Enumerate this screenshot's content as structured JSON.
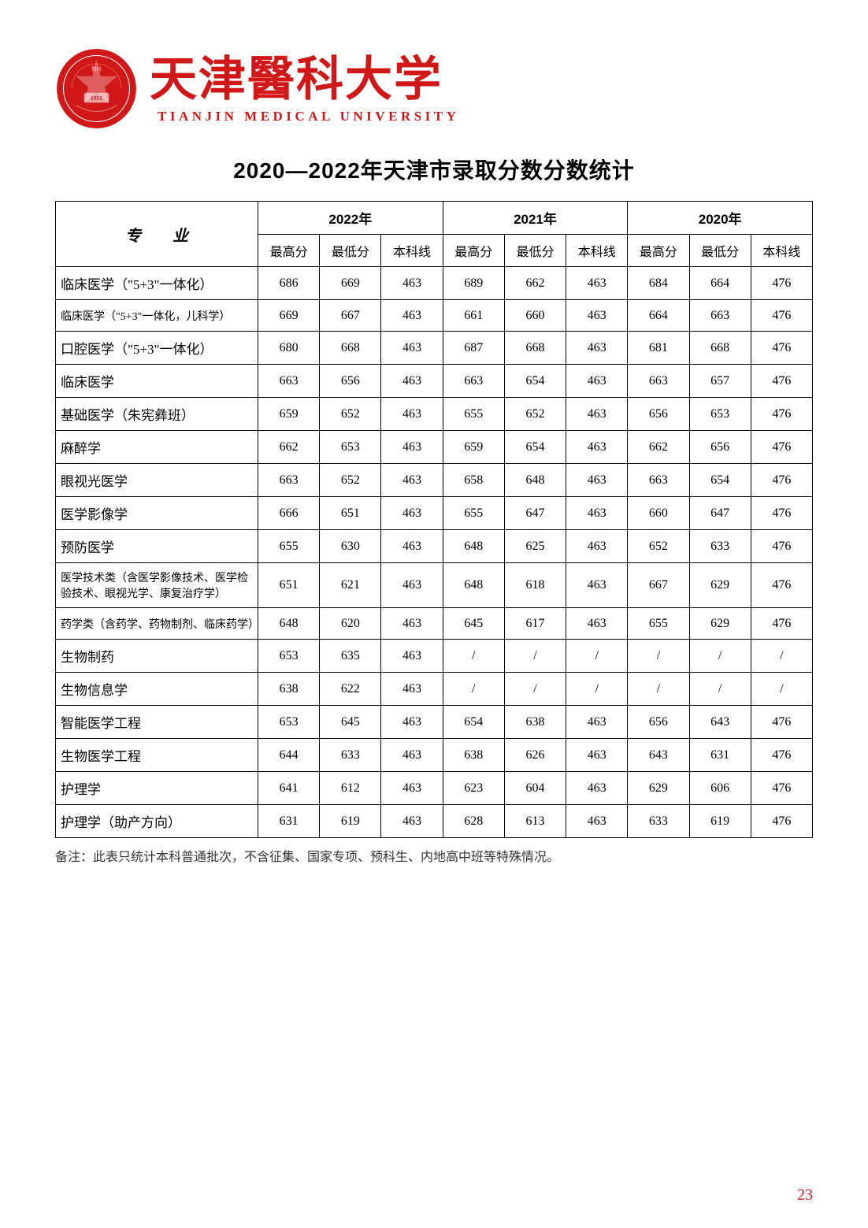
{
  "header": {
    "chinese_name": "天津醫科大学",
    "english_name": "TIANJIN MEDICAL UNIVERSITY",
    "logo_bg": "#d01818",
    "logo_inner": "#ffffff"
  },
  "title": "2020—2022年天津市录取分数分数统计",
  "table": {
    "major_header": "专　　业",
    "years": [
      "2022年",
      "2021年",
      "2020年"
    ],
    "sub_headers": [
      "最高分",
      "最低分",
      "本科线"
    ],
    "rows": [
      {
        "major": "临床医学（\"5+3\"一体化）",
        "data": [
          "686",
          "669",
          "463",
          "689",
          "662",
          "463",
          "684",
          "664",
          "476"
        ]
      },
      {
        "major": "临床医学（\"5+3\"一体化，儿科学）",
        "small": true,
        "data": [
          "669",
          "667",
          "463",
          "661",
          "660",
          "463",
          "664",
          "663",
          "476"
        ]
      },
      {
        "major": "口腔医学（\"5+3\"一体化）",
        "data": [
          "680",
          "668",
          "463",
          "687",
          "668",
          "463",
          "681",
          "668",
          "476"
        ]
      },
      {
        "major": "临床医学",
        "data": [
          "663",
          "656",
          "463",
          "663",
          "654",
          "463",
          "663",
          "657",
          "476"
        ]
      },
      {
        "major": "基础医学（朱宪彝班）",
        "data": [
          "659",
          "652",
          "463",
          "655",
          "652",
          "463",
          "656",
          "653",
          "476"
        ]
      },
      {
        "major": "麻醉学",
        "data": [
          "662",
          "653",
          "463",
          "659",
          "654",
          "463",
          "662",
          "656",
          "476"
        ]
      },
      {
        "major": "眼视光医学",
        "data": [
          "663",
          "652",
          "463",
          "658",
          "648",
          "463",
          "663",
          "654",
          "476"
        ]
      },
      {
        "major": "医学影像学",
        "data": [
          "666",
          "651",
          "463",
          "655",
          "647",
          "463",
          "660",
          "647",
          "476"
        ]
      },
      {
        "major": "预防医学",
        "data": [
          "655",
          "630",
          "463",
          "648",
          "625",
          "463",
          "652",
          "633",
          "476"
        ]
      },
      {
        "major": "医学技术类（含医学影像技术、医学检验技术、眼视光学、康复治疗学）",
        "small": true,
        "data": [
          "651",
          "621",
          "463",
          "648",
          "618",
          "463",
          "667",
          "629",
          "476"
        ]
      },
      {
        "major": "药学类（含药学、药物制剂、临床药学）",
        "small": true,
        "data": [
          "648",
          "620",
          "463",
          "645",
          "617",
          "463",
          "655",
          "629",
          "476"
        ]
      },
      {
        "major": "生物制药",
        "data": [
          "653",
          "635",
          "463",
          "/",
          "/",
          "/",
          "/",
          "/",
          "/"
        ]
      },
      {
        "major": "生物信息学",
        "data": [
          "638",
          "622",
          "463",
          "/",
          "/",
          "/",
          "/",
          "/",
          "/"
        ]
      },
      {
        "major": "智能医学工程",
        "data": [
          "653",
          "645",
          "463",
          "654",
          "638",
          "463",
          "656",
          "643",
          "476"
        ]
      },
      {
        "major": "生物医学工程",
        "data": [
          "644",
          "633",
          "463",
          "638",
          "626",
          "463",
          "643",
          "631",
          "476"
        ]
      },
      {
        "major": "护理学",
        "data": [
          "641",
          "612",
          "463",
          "623",
          "604",
          "463",
          "629",
          "606",
          "476"
        ]
      },
      {
        "major": "护理学（助产方向）",
        "data": [
          "631",
          "619",
          "463",
          "628",
          "613",
          "463",
          "633",
          "619",
          "476"
        ]
      }
    ]
  },
  "note": "备注：此表只统计本科普通批次，不含征集、国家专项、预科生、内地高中班等特殊情况。",
  "page_number": "23"
}
